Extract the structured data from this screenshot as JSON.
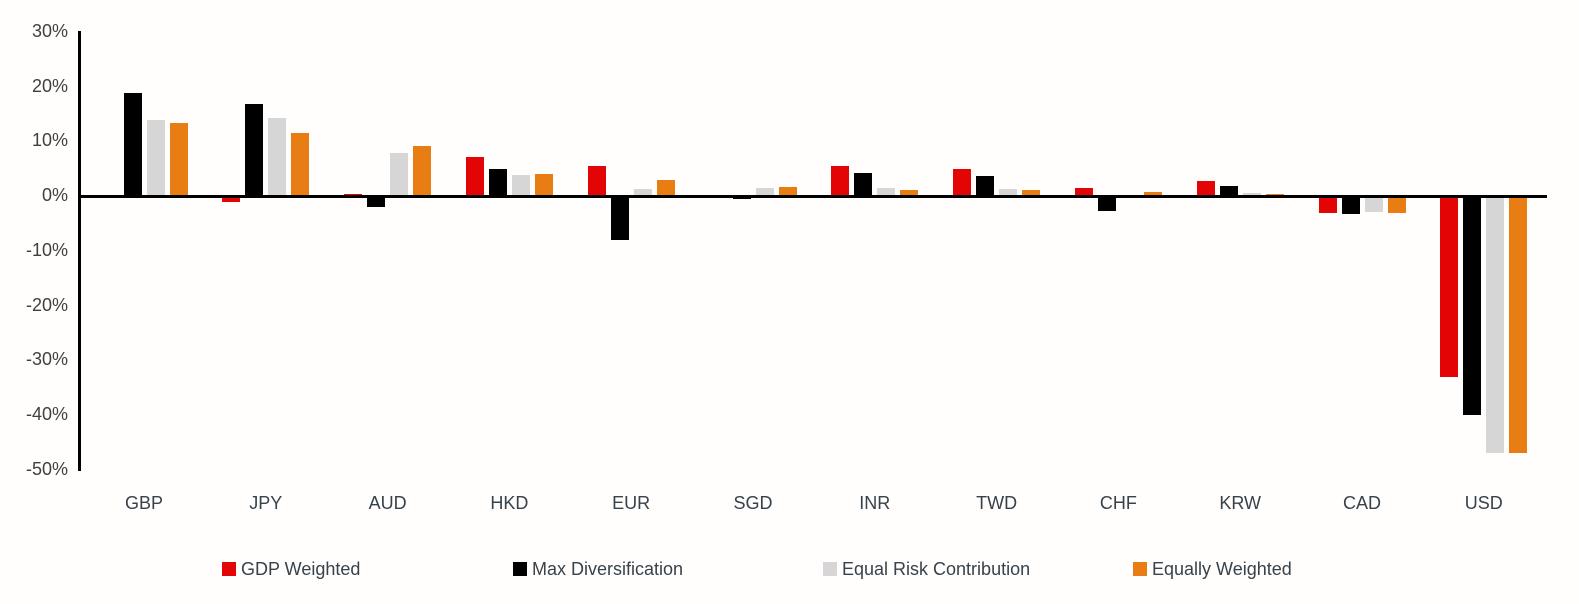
{
  "chart_data": {
    "type": "bar",
    "title": "",
    "categories": [
      "GBP",
      "JPY",
      "AUD",
      "HKD",
      "EUR",
      "SGD",
      "INR",
      "TWD",
      "CHF",
      "KRW",
      "CAD",
      "USD"
    ],
    "series": [
      {
        "name": "GDP Weighted",
        "color": "#e30505",
        "values": [
          0.3,
          -1.0,
          0.4,
          7.2,
          5.5,
          -0.3,
          5.6,
          5.0,
          1.5,
          2.8,
          -3.0,
          -33.0
        ]
      },
      {
        "name": "Max Diversification",
        "color": "#000000",
        "values": [
          19.0,
          17.0,
          -2.0,
          5.0,
          -8.0,
          -0.5,
          4.3,
          3.7,
          -2.6,
          2.0,
          -3.2,
          -40.0
        ]
      },
      {
        "name": "Equal Risk Contribution",
        "color": "#d6d6d6",
        "values": [
          14.0,
          14.3,
          8.0,
          4.0,
          1.3,
          1.5,
          1.5,
          1.3,
          0.1,
          0.7,
          -2.8,
          -47.0
        ]
      },
      {
        "name": "Equally Weighted",
        "color": "#e87d14",
        "values": [
          13.5,
          11.7,
          9.3,
          4.1,
          3.0,
          1.8,
          1.2,
          1.1,
          0.9,
          0.5,
          -3.0,
          -47.0
        ]
      }
    ],
    "y_axis": {
      "unit": "%",
      "min": -50,
      "max": 30,
      "tick_step": 10,
      "ticks": [
        "30%",
        "20%",
        "10%",
        "0%",
        "-10%",
        "-20%",
        "-30%",
        "-40%",
        "-50%"
      ]
    },
    "x_axis": {
      "label": ""
    },
    "legend_position": "bottom",
    "grid": false,
    "colors": {
      "axis": "#000000",
      "tick_text": "#3f3f3f",
      "label_text": "#37424a",
      "background": "#fffefd"
    }
  }
}
